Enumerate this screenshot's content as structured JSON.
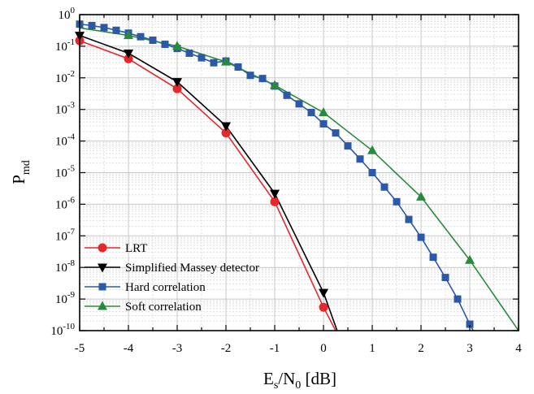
{
  "chart_data": {
    "type": "line",
    "xlabel": {
      "main": "E",
      "sub1": "s",
      "mid": "/N",
      "sub2": "0",
      "tail": " [dB]"
    },
    "ylabel": {
      "main": "P",
      "sub": "md"
    },
    "xlim": [
      -5,
      4
    ],
    "ylim_log10": [
      -10,
      0
    ],
    "log_y": true,
    "grid": true,
    "legend_position": "bottom-left",
    "x_ticks": [
      "-5",
      "-4",
      "-3",
      "-2",
      "-1",
      "0",
      "1",
      "2",
      "3",
      "4"
    ],
    "y_tick_exponents": [
      "0",
      "-1",
      "-2",
      "-3",
      "-4",
      "-5",
      "-6",
      "-7",
      "-8",
      "-9",
      "-10"
    ],
    "y_tick_base": "10",
    "series": [
      {
        "name": "LRT",
        "color": "#e8272b",
        "marker": "circle",
        "points": [
          [
            -5,
            0.15
          ],
          [
            -4,
            0.04
          ],
          [
            -3,
            0.0045
          ],
          [
            -2,
            0.00018
          ],
          [
            -1,
            1.2e-06
          ],
          [
            0,
            5.5e-10
          ],
          [
            0.25,
            1e-10
          ]
        ]
      },
      {
        "name": "Simplified Massey detector",
        "color": "#000000",
        "marker": "triangle-down",
        "points": [
          [
            -5,
            0.22
          ],
          [
            -4,
            0.06
          ],
          [
            -3,
            0.0075
          ],
          [
            -2,
            0.0003
          ],
          [
            -1,
            2.2e-06
          ],
          [
            0,
            1.6e-09
          ],
          [
            0.28,
            1e-10
          ]
        ]
      },
      {
        "name": "Hard correlation",
        "color": "#2c58a8",
        "marker": "square",
        "points": [
          [
            -5,
            0.5
          ],
          [
            -4.75,
            0.45
          ],
          [
            -4.5,
            0.39
          ],
          [
            -4.25,
            0.32
          ],
          [
            -4,
            0.26
          ],
          [
            -3.75,
            0.2
          ],
          [
            -3.5,
            0.155
          ],
          [
            -3.25,
            0.115
          ],
          [
            -3,
            0.085
          ],
          [
            -2.75,
            0.06
          ],
          [
            -2.5,
            0.043
          ],
          [
            -2.25,
            0.03
          ],
          [
            -2,
            0.034
          ],
          [
            -1.75,
            0.022
          ],
          [
            -1.5,
            0.012
          ],
          [
            -1.25,
            0.0095
          ],
          [
            -1,
            0.0055
          ],
          [
            -0.75,
            0.0028
          ],
          [
            -0.5,
            0.0015
          ],
          [
            -0.25,
            0.0008
          ],
          [
            0,
            0.00035
          ],
          [
            0.25,
            0.00018
          ],
          [
            0.5,
            7e-05
          ],
          [
            0.75,
            2.7e-05
          ],
          [
            1,
            1e-05
          ],
          [
            1.25,
            3.5e-06
          ],
          [
            1.5,
            1.2e-06
          ],
          [
            1.75,
            3.3e-07
          ],
          [
            2,
            9e-08
          ],
          [
            2.25,
            2.1e-08
          ],
          [
            2.5,
            4.8e-09
          ],
          [
            2.75,
            1e-09
          ],
          [
            3,
            1.6e-10
          ],
          [
            3.07,
            1e-10
          ]
        ]
      },
      {
        "name": "Soft correlation",
        "color": "#2a8a3c",
        "marker": "triangle-up",
        "markers_at": [
          -4,
          -3,
          -2,
          -1,
          0,
          1,
          2,
          3
        ],
        "points": [
          [
            -5,
            0.38
          ],
          [
            -4,
            0.22
          ],
          [
            -3,
            0.1
          ],
          [
            -2,
            0.032
          ],
          [
            -1,
            0.0058
          ],
          [
            0,
            0.0008
          ],
          [
            1,
            5e-05
          ],
          [
            2,
            1.7e-06
          ],
          [
            3,
            1.7e-08
          ],
          [
            4,
            1e-10
          ]
        ]
      }
    ]
  }
}
